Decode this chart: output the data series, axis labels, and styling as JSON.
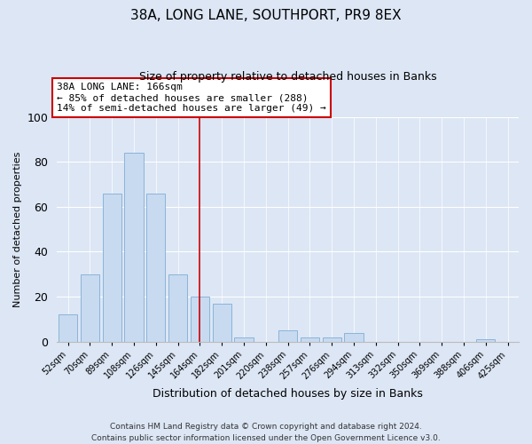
{
  "title": "38A, LONG LANE, SOUTHPORT, PR9 8EX",
  "subtitle": "Size of property relative to detached houses in Banks",
  "xlabel": "Distribution of detached houses by size in Banks",
  "ylabel": "Number of detached properties",
  "categories": [
    "52sqm",
    "70sqm",
    "89sqm",
    "108sqm",
    "126sqm",
    "145sqm",
    "164sqm",
    "182sqm",
    "201sqm",
    "220sqm",
    "238sqm",
    "257sqm",
    "276sqm",
    "294sqm",
    "313sqm",
    "332sqm",
    "350sqm",
    "369sqm",
    "388sqm",
    "406sqm",
    "425sqm"
  ],
  "values": [
    12,
    30,
    66,
    84,
    66,
    30,
    20,
    17,
    2,
    0,
    5,
    2,
    2,
    4,
    0,
    0,
    0,
    0,
    0,
    1,
    0
  ],
  "bar_color": "#c8daf0",
  "bar_edge_color": "#8ab4d8",
  "ylim": [
    0,
    100
  ],
  "yticks": [
    0,
    20,
    40,
    60,
    80,
    100
  ],
  "vline_x": 6.0,
  "vline_color": "#cc0000",
  "annotation_title": "38A LONG LANE: 166sqm",
  "annotation_line1": "← 85% of detached houses are smaller (288)",
  "annotation_line2": "14% of semi-detached houses are larger (49) →",
  "annotation_box_facecolor": "#ffffff",
  "annotation_box_edgecolor": "#cc0000",
  "footer1": "Contains HM Land Registry data © Crown copyright and database right 2024.",
  "footer2": "Contains public sector information licensed under the Open Government Licence v3.0.",
  "fig_facecolor": "#dce6f5",
  "plot_facecolor": "#dce6f5",
  "grid_color": "#ffffff"
}
